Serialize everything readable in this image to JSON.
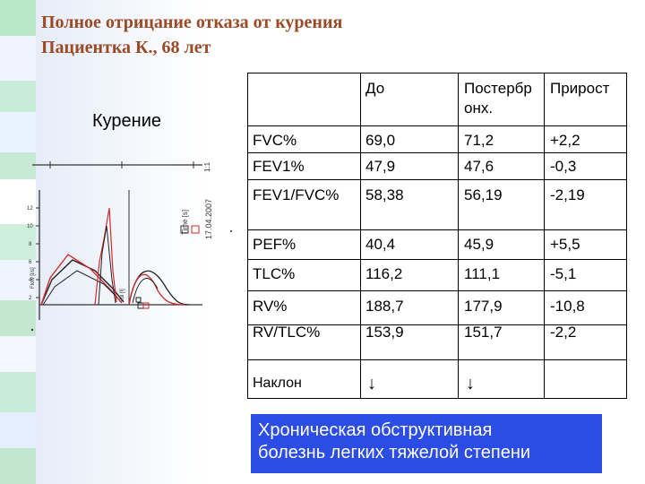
{
  "title": {
    "line1": "Полное отрицание отказа от курения",
    "line2": "Пациентка К., 68 лет"
  },
  "smoking_label": "Курение",
  "graph": {
    "date_label": "17.04.2007",
    "time_label": "Time [s]",
    "flow_label": "Flow [l/s]",
    "vol_label": "Vol [l]",
    "side_mark": "1:1",
    "y_ticks": [
      "12",
      "10",
      "8",
      "6",
      "4",
      "2"
    ]
  },
  "table": {
    "headers": {
      "before": "До",
      "after": "Постербр онх.",
      "gain": "Прирост"
    },
    "header_after_line1": "Постербр",
    "header_after_line2": "онх.",
    "rows": [
      {
        "param": "FVC%",
        "before": "69,0",
        "after": "71,2",
        "gain": "+2,2"
      },
      {
        "param": "FEV1%",
        "before": "47,9",
        "after": "47,6",
        "gain": "-0,3"
      },
      {
        "param": "FEV1/FVC%",
        "before": "58,38",
        "after": "56,19",
        "gain": "-2,19"
      },
      {
        "param": "PEF%",
        "before": "40,4",
        "after": "45,9",
        "gain": "+5,5"
      },
      {
        "param": "TLC%",
        "before": "116,2",
        "after": "111,1",
        "gain": "-5,1"
      },
      {
        "param": "RV%",
        "before": "188,7",
        "after": "177,9",
        "gain": "-10,8"
      },
      {
        "param": "RV/TLC%",
        "before": "153,9",
        "after": "151,7",
        "gain": "-2,2"
      },
      {
        "param": "Наклон",
        "before": "↓",
        "after": "↓",
        "gain": ""
      }
    ]
  },
  "conclusion": {
    "line1": "Хроническая обструктивная",
    "line2": "болезнь легких тяжелой степени"
  },
  "colors": {
    "title": "#9b4a25",
    "conclusion_bg": "#2b4de6",
    "curve_red": "#d42a2a",
    "curve_black": "#222222"
  }
}
